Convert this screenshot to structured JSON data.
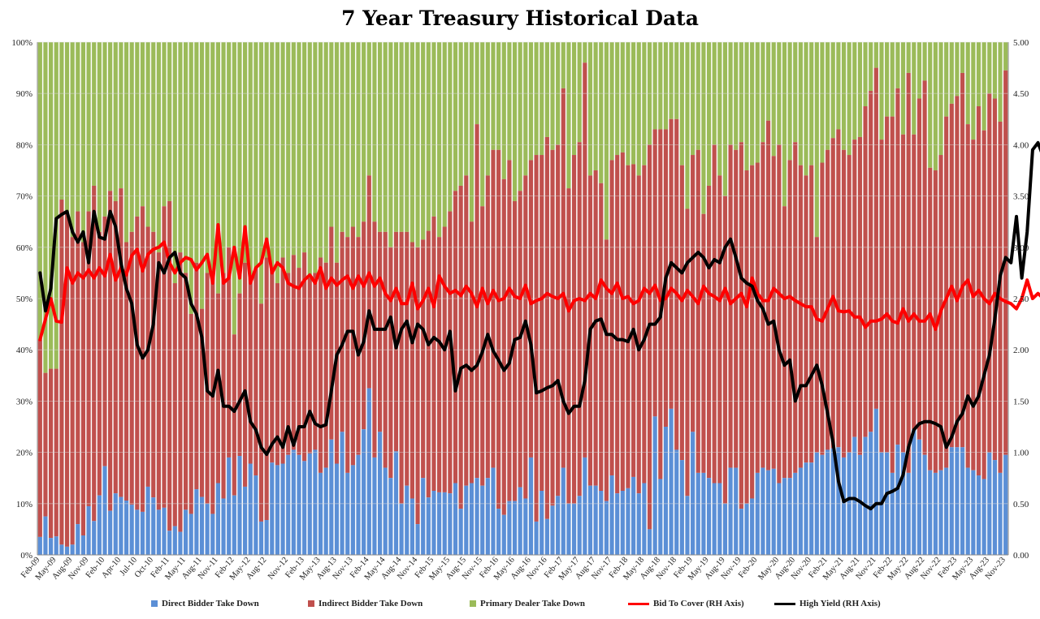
{
  "chart_data": {
    "type": "bar",
    "stacked": true,
    "title": "7 Year Treasury Historical Data",
    "left_axis": {
      "ylim": [
        0,
        100
      ],
      "ticks": [
        "0%",
        "10%",
        "20%",
        "30%",
        "40%",
        "50%",
        "60%",
        "70%",
        "80%",
        "90%",
        "100%"
      ]
    },
    "right_axis": {
      "ylim": [
        0,
        5
      ],
      "ticks": [
        "0.00",
        "0.50",
        "1.00",
        "1.50",
        "2.00",
        "2.50",
        "3.00",
        "3.50",
        "4.00",
        "4.50",
        "5.00"
      ]
    },
    "x_tick_labels": [
      "Feb-09",
      "May-09",
      "Aug-09",
      "Nov-09",
      "Feb-10",
      "Apr-10",
      "Jul-10",
      "Oct-10",
      "Feb-11",
      "May-11",
      "Aug-11",
      "Nov-11",
      "Feb-12",
      "May-12",
      "Aug-12",
      "Nov-12",
      "Feb-13",
      "May-13",
      "Aug-13",
      "Nov-13",
      "Feb-14",
      "May-14",
      "Aug-14",
      "Nov-14",
      "Feb-15",
      "May-15",
      "Aug-15",
      "Nov-15",
      "Feb-16",
      "May-16",
      "Aug-16",
      "Nov-16",
      "Feb-17",
      "May-17",
      "Aug-17",
      "Nov-17",
      "Feb-18",
      "May-18",
      "Aug-18",
      "Nov-18",
      "Feb-19",
      "May-19",
      "Aug-19",
      "Nov-19",
      "Feb-20",
      "May-20",
      "Aug-20",
      "Nov-20",
      "Feb-21",
      "May-21",
      "Aug-21",
      "Nov-21",
      "Feb-22",
      "May-22",
      "Aug-22",
      "Nov-22",
      "Feb-23",
      "May-23",
      "Aug-23",
      "Nov-23"
    ],
    "grid": true,
    "legend_position": "bottom",
    "series": [
      {
        "name": "Direct Bidder Take Down",
        "type": "bar",
        "axis": "left",
        "color": "#5b8fd6",
        "values": [
          3.5,
          7.5,
          3.3,
          3.6,
          2.0,
          1.6,
          2.0,
          6.0,
          3.8,
          9.5,
          6.6,
          11.6,
          17.3,
          8.6,
          12.0,
          11.3,
          10.6,
          9.8,
          8.8,
          8.4,
          13.3,
          11.2,
          8.8,
          9.2,
          4.7,
          5.6,
          4.5,
          8.8,
          8.0,
          12.8,
          11.3,
          10.0,
          8.0,
          14.0,
          11.0,
          19.0,
          11.6,
          19.3,
          13.3,
          17.8,
          15.5,
          6.5,
          6.8,
          18.0,
          17.5,
          17.8,
          19.5,
          20.5,
          19.5,
          18.3,
          19.8,
          20.5,
          16.0,
          17.0,
          22.5,
          17.8,
          24.0,
          16.0,
          17.5,
          19.5,
          24.5,
          32.5,
          19.0,
          24.0,
          17.0,
          15.0,
          20.2,
          10.0,
          13.5,
          11.0,
          6.0,
          15.0,
          11.2,
          12.5,
          12.2,
          12.2,
          12.0,
          14.0,
          9.0,
          13.5,
          14.0,
          15.0,
          13.5,
          15.0,
          17.0,
          9.0,
          7.8,
          10.5,
          10.5,
          13.2,
          11.0,
          19.0,
          6.5,
          12.5,
          7.0,
          9.6,
          11.5,
          17.0,
          10.0,
          10.0,
          11.5,
          19.0,
          13.5,
          13.5,
          12.5,
          10.5,
          15.5,
          12.0,
          12.5,
          13.0,
          15.2,
          12.0,
          14.0,
          5.0,
          27.0,
          14.8,
          25.0,
          28.5,
          20.5,
          18.5,
          11.5,
          24.0,
          16.0,
          16.0,
          15.0,
          14.0,
          14.0,
          10.0,
          17.0,
          17.0,
          9.0,
          10.0,
          11.0,
          16.0,
          17.0,
          16.5,
          16.8,
          14.0,
          15.0,
          15.0,
          16.0,
          17.0,
          18.0,
          18.0,
          20.0,
          19.5,
          20.5,
          20.8,
          21.0,
          19.0,
          20.0,
          23.0,
          19.5,
          23.0,
          24.0,
          28.5,
          20.0,
          20.0,
          16.0,
          21.5,
          20.0,
          16.0,
          24.5,
          22.5,
          19.5,
          16.5,
          16.0,
          16.5,
          17.0,
          21.0,
          21.0,
          21.0,
          17.0,
          16.5,
          15.5,
          14.8,
          20.0,
          18.5,
          16.0,
          19.5
        ]
      },
      {
        "name": "Indirect Bidder Take Down",
        "type": "bar",
        "axis": "left",
        "color": "#c0504d",
        "values": [
          38.5,
          28.0,
          33.0,
          32.7,
          67.3,
          65.0,
          60.0,
          61.0,
          57.2,
          57.5,
          65.4,
          51.4,
          48.7,
          62.4,
          57.0,
          60.2,
          50.4,
          53.2,
          57.2,
          59.6,
          50.7,
          51.8,
          50.2,
          58.8,
          64.3,
          47.4,
          54.5,
          46.2,
          39.0,
          44.2,
          36.7,
          45.0,
          47.0,
          37.0,
          44.0,
          41.0,
          31.4,
          31.7,
          43.7,
          36.2,
          40.5,
          42.5,
          51.2,
          38.0,
          35.5,
          40.2,
          35.5,
          38.0,
          36.5,
          40.7,
          34.2,
          34.5,
          42.0,
          40.0,
          41.5,
          39.2,
          39.0,
          46.0,
          46.5,
          42.5,
          40.5,
          41.5,
          46.0,
          39.0,
          46.0,
          45.0,
          42.8,
          53.0,
          49.5,
          50.0,
          54.0,
          46.5,
          52.0,
          53.5,
          49.8,
          51.8,
          55.0,
          57.0,
          63.0,
          60.5,
          51.0,
          69.0,
          54.5,
          59.0,
          62.0,
          70.0,
          65.5,
          66.5,
          58.5,
          57.8,
          63.0,
          58.0,
          71.5,
          65.5,
          74.5,
          69.4,
          68.5,
          74.0,
          61.5,
          68.0,
          69.0,
          77.0,
          60.5,
          61.5,
          60.0,
          51.0,
          61.5,
          66.0,
          66.0,
          63.0,
          61.0,
          62.0,
          62.0,
          75.0,
          56.0,
          68.2,
          58.0,
          56.5,
          64.5,
          57.5,
          56.0,
          54.0,
          63.0,
          50.5,
          57.0,
          66.0,
          60.0,
          60.0,
          63.0,
          62.0,
          71.5,
          65.0,
          65.0,
          60.5,
          63.5,
          68.2,
          61.0,
          66.0,
          53.0,
          62.0,
          64.5,
          59.0,
          56.0,
          58.0,
          42.0,
          57.0,
          58.5,
          60.5,
          62.0,
          60.0,
          58.0,
          58.0,
          62.0,
          64.5,
          66.5,
          66.5,
          61.0,
          65.5,
          69.5,
          69.5,
          62.0,
          78.0,
          57.5,
          66.5,
          73.0,
          59.0,
          59.0,
          61.5,
          68.5,
          67.0,
          68.5,
          73.0,
          67.0,
          64.5,
          72.0,
          68.0,
          70.0,
          70.5,
          68.5,
          75.0,
          62.0,
          70.5,
          63.0,
          64.0
        ]
      },
      {
        "name": "Primary Dealer Take Down",
        "type": "bar",
        "axis": "left",
        "color": "#9bbb59",
        "values": "remainder to 100%"
      },
      {
        "name": "Bid To Cover (RH Axis)",
        "type": "line",
        "axis": "right",
        "color": "#ff0000",
        "values": [
          2.1,
          2.3,
          2.5,
          2.28,
          2.27,
          2.8,
          2.65,
          2.75,
          2.7,
          2.78,
          2.7,
          2.8,
          2.72,
          2.93,
          2.68,
          2.8,
          2.73,
          2.92,
          2.98,
          2.77,
          2.93,
          2.98,
          3.0,
          3.05,
          2.85,
          2.75,
          2.85,
          2.9,
          2.88,
          2.78,
          2.85,
          2.93,
          2.65,
          3.22,
          2.65,
          2.7,
          3.0,
          2.7,
          3.2,
          2.65,
          2.8,
          2.85,
          3.08,
          2.75,
          2.85,
          2.8,
          2.65,
          2.62,
          2.6,
          2.68,
          2.73,
          2.65,
          2.8,
          2.6,
          2.7,
          2.63,
          2.68,
          2.72,
          2.6,
          2.72,
          2.62,
          2.75,
          2.62,
          2.7,
          2.55,
          2.48,
          2.6,
          2.45,
          2.45,
          2.65,
          2.4,
          2.48,
          2.6,
          2.42,
          2.72,
          2.62,
          2.55,
          2.58,
          2.53,
          2.62,
          2.55,
          2.42,
          2.6,
          2.45,
          2.58,
          2.48,
          2.5,
          2.6,
          2.52,
          2.5,
          2.63,
          2.45,
          2.48,
          2.5,
          2.55,
          2.52,
          2.5,
          2.55,
          2.38,
          2.48,
          2.5,
          2.48,
          2.55,
          2.5,
          2.68,
          2.6,
          2.55,
          2.65,
          2.5,
          2.52,
          2.45,
          2.48,
          2.6,
          2.55,
          2.63,
          2.48,
          2.5,
          2.6,
          2.55,
          2.48,
          2.58,
          2.52,
          2.45,
          2.62,
          2.55,
          2.52,
          2.48,
          2.6,
          2.45,
          2.5,
          2.55,
          2.42,
          2.7,
          2.55,
          2.48,
          2.48,
          2.6,
          2.55,
          2.5,
          2.52,
          2.48,
          2.45,
          2.42,
          2.42,
          2.3,
          2.28,
          2.4,
          2.52,
          2.38,
          2.37,
          2.38,
          2.32,
          2.32,
          2.22,
          2.28,
          2.28,
          2.3,
          2.35,
          2.28,
          2.26,
          2.4,
          2.28,
          2.35,
          2.28,
          2.28,
          2.35,
          2.2,
          2.38,
          2.5,
          2.62,
          2.48,
          2.62,
          2.68,
          2.52,
          2.58,
          2.5,
          2.45,
          2.55,
          2.5,
          2.47,
          2.45,
          2.4,
          2.5,
          2.68,
          2.5,
          2.55,
          2.5,
          2.48,
          2.6,
          2.48,
          2.62,
          2.45,
          2.66,
          2.45,
          2.65,
          2.5,
          2.48,
          2.5
        ]
      },
      {
        "name": "High Yield (RH Axis)",
        "type": "line",
        "axis": "right",
        "color": "#000000",
        "values": [
          2.75,
          2.38,
          2.6,
          3.28,
          3.32,
          3.35,
          3.15,
          3.05,
          3.15,
          2.85,
          3.35,
          3.1,
          3.08,
          3.35,
          3.2,
          2.85,
          2.6,
          2.45,
          2.05,
          1.92,
          2.0,
          2.25,
          2.85,
          2.75,
          2.9,
          2.95,
          2.75,
          2.7,
          2.45,
          2.35,
          2.12,
          1.6,
          1.55,
          1.8,
          1.45,
          1.45,
          1.4,
          1.5,
          1.6,
          1.3,
          1.22,
          1.05,
          0.98,
          1.08,
          1.15,
          1.05,
          1.25,
          1.07,
          1.25,
          1.25,
          1.4,
          1.28,
          1.25,
          1.27,
          1.6,
          1.95,
          2.05,
          2.18,
          2.18,
          1.95,
          2.08,
          2.38,
          2.2,
          2.2,
          2.2,
          2.32,
          2.02,
          2.2,
          2.28,
          2.07,
          2.25,
          2.2,
          2.05,
          2.12,
          2.08,
          2.0,
          2.18,
          1.6,
          1.82,
          1.85,
          1.8,
          1.85,
          1.98,
          2.15,
          1.99,
          1.9,
          1.8,
          1.87,
          2.1,
          2.12,
          2.28,
          2.05,
          1.58,
          1.6,
          1.63,
          1.65,
          1.7,
          1.5,
          1.38,
          1.45,
          1.45,
          1.7,
          2.2,
          2.28,
          2.3,
          2.15,
          2.15,
          2.1,
          2.1,
          2.08,
          2.2,
          2.0,
          2.1,
          2.25,
          2.25,
          2.32,
          2.7,
          2.85,
          2.8,
          2.75,
          2.85,
          2.9,
          2.95,
          2.9,
          2.8,
          2.88,
          2.85,
          3.0,
          3.08,
          2.9,
          2.7,
          2.65,
          2.62,
          2.48,
          2.4,
          2.25,
          2.28,
          2.0,
          1.85,
          1.9,
          1.5,
          1.65,
          1.65,
          1.75,
          1.85,
          1.65,
          1.38,
          1.1,
          0.72,
          0.52,
          0.55,
          0.55,
          0.52,
          0.48,
          0.45,
          0.5,
          0.5,
          0.6,
          0.62,
          0.65,
          0.78,
          1.05,
          1.22,
          1.28,
          1.3,
          1.3,
          1.28,
          1.25,
          1.05,
          1.15,
          1.3,
          1.38,
          1.55,
          1.45,
          1.55,
          1.75,
          1.95,
          2.3,
          2.72,
          2.9,
          2.85,
          3.3,
          2.7,
          3.15,
          3.95,
          4.02,
          3.88,
          3.95,
          3.5,
          3.95,
          3.65,
          3.6,
          3.85,
          3.85,
          4.1,
          4.25,
          4.65,
          4.9,
          4.62,
          3.85
        ]
      }
    ]
  }
}
